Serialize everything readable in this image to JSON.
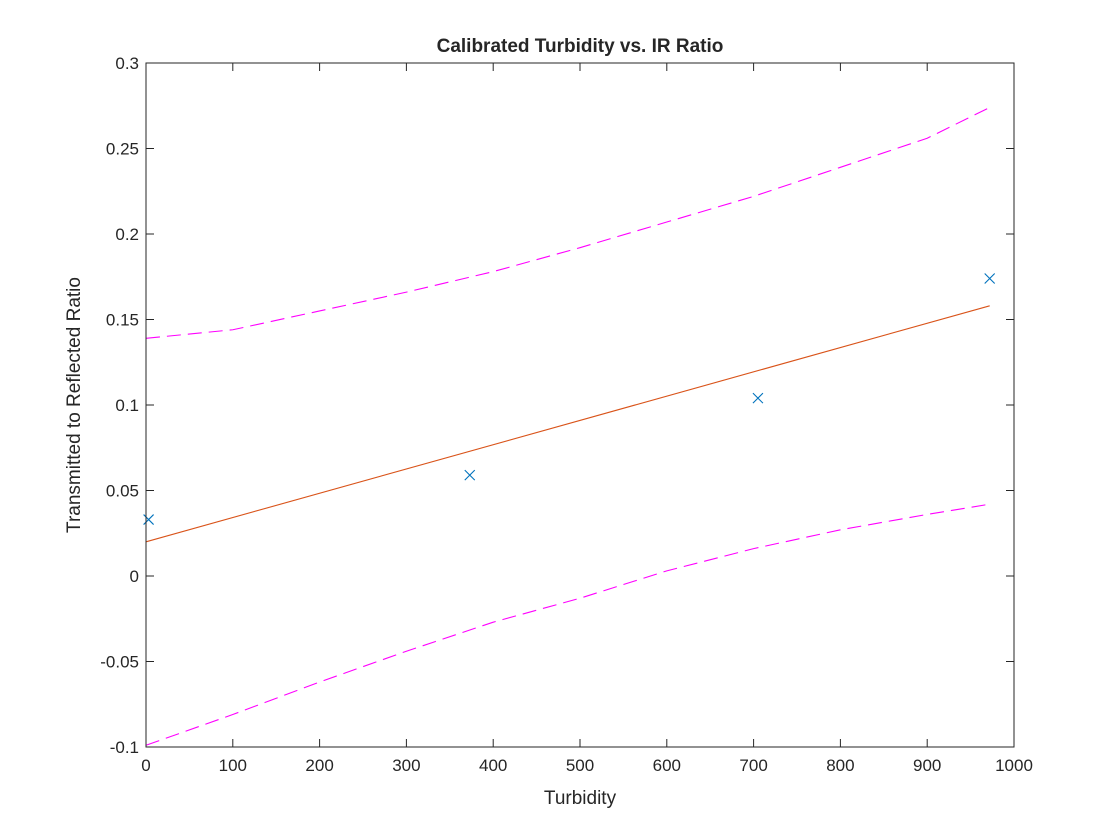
{
  "chart_data": {
    "type": "scatter",
    "title": "Calibrated Turbidity vs. IR Ratio",
    "xlabel": "Turbidity",
    "ylabel": "Transmitted to Reflected Ratio",
    "xlim": [
      0,
      1000
    ],
    "ylim": [
      -0.1,
      0.3
    ],
    "xticks": [
      "0",
      "100",
      "200",
      "300",
      "400",
      "500",
      "600",
      "700",
      "800",
      "900",
      "1000"
    ],
    "yticks": [
      "-0.1",
      "-0.05",
      "0",
      "0.05",
      "0.1",
      "0.15",
      "0.2",
      "0.25",
      "0.3"
    ],
    "grid": false,
    "legend": "none",
    "series": [
      {
        "kind": "scatter",
        "marker": "x",
        "color": "#0072BD",
        "x": [
          3,
          373,
          705,
          972
        ],
        "y": [
          0.033,
          0.059,
          0.104,
          0.174
        ]
      },
      {
        "kind": "line",
        "style": "solid",
        "color": "#D95319",
        "x": [
          0,
          972
        ],
        "y": [
          0.02,
          0.158
        ]
      },
      {
        "kind": "line",
        "style": "dashed",
        "color": "#FF00FF",
        "x": [
          0,
          100,
          200,
          300,
          400,
          500,
          600,
          700,
          800,
          900,
          972
        ],
        "y": [
          0.139,
          0.144,
          0.155,
          0.166,
          0.178,
          0.192,
          0.207,
          0.222,
          0.239,
          0.256,
          0.274
        ]
      },
      {
        "kind": "line",
        "style": "dashed",
        "color": "#FF00FF",
        "x": [
          0,
          100,
          200,
          300,
          400,
          500,
          600,
          700,
          800,
          900,
          972
        ],
        "y": [
          -0.099,
          -0.081,
          -0.062,
          -0.044,
          -0.027,
          -0.013,
          0.003,
          0.016,
          0.027,
          0.036,
          0.042
        ]
      }
    ]
  }
}
